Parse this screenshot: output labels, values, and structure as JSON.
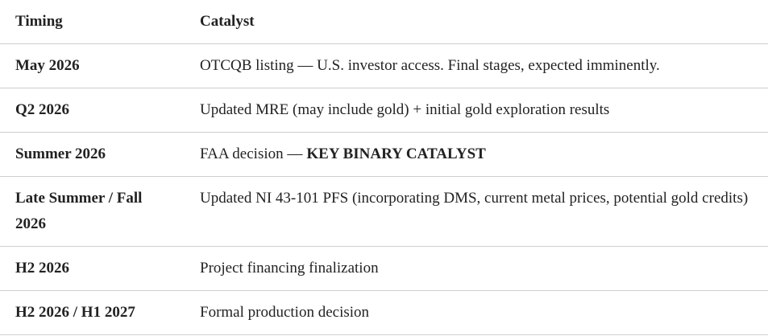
{
  "table": {
    "header": [
      "Timing",
      "Catalyst"
    ],
    "rows": [
      [
        "May 2026",
        "OTCQB listing — U.S. investor access. Final stages, expected imminently."
      ],
      [
        "Q2 2026",
        "Updated MRE (may include gold) + initial gold exploration results"
      ],
      [
        "Summer 2026",
        [
          "FAA decision —",
          "KEY BINARY CATALYST"
        ]
      ],
      [
        "Late Summer / Fall 2026",
        "Updated NI 43-101 PFS (incorporating DMS, current metal prices, potential gold credits)"
      ],
      [
        "H2 2026",
        "Project financing finalization"
      ],
      [
        "H2 2026 / H1 2027",
        "Formal production decision"
      ]
    ]
  }
}
